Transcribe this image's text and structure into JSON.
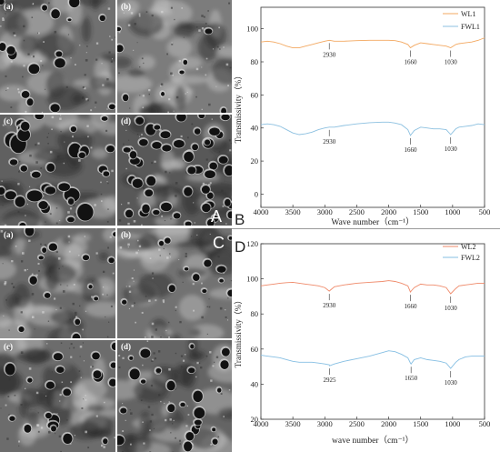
{
  "figure": {
    "sem_panels": [
      {
        "letter": "A",
        "tiles": [
          "(a)",
          "(b)",
          "(c)",
          "(d)"
        ]
      },
      {
        "letter": "C",
        "tiles": [
          "(a)",
          "(b)",
          "(c)",
          "(d)"
        ]
      }
    ]
  },
  "chart_data": [
    {
      "panel_label": "B",
      "type": "line",
      "title": "",
      "xlabel": "Wave number（cm⁻¹）",
      "ylabel": "Transmissivity（%）",
      "xlim": [
        4000,
        500
      ],
      "ylim": [
        -8,
        113
      ],
      "xticks": [
        4000,
        3500,
        3000,
        2500,
        2000,
        1500,
        1000,
        500
      ],
      "yticks": [
        0,
        20,
        40,
        60,
        80,
        100
      ],
      "grid": false,
      "legend_position": "top-right",
      "x": [
        4000,
        3900,
        3800,
        3700,
        3600,
        3500,
        3400,
        3300,
        3200,
        3100,
        3000,
        2930,
        2850,
        2700,
        2500,
        2300,
        2100,
        2000,
        1900,
        1800,
        1700,
        1660,
        1600,
        1500,
        1400,
        1300,
        1200,
        1100,
        1030,
        950,
        900,
        800,
        700,
        600,
        500
      ],
      "series": [
        {
          "name": "WL1",
          "color": "#f3a860",
          "values": [
            92,
            92.5,
            92,
            91,
            89.5,
            88.5,
            88.5,
            89.5,
            90.5,
            91.5,
            92.5,
            93,
            92.5,
            92.5,
            92.8,
            93,
            93,
            93,
            92.8,
            92,
            90.5,
            88.5,
            90,
            91.5,
            91,
            90.5,
            90,
            89.5,
            88.5,
            90.5,
            91,
            91.5,
            92,
            93,
            94.5
          ]
        },
        {
          "name": "FWL1",
          "color": "#8cc0e0",
          "values": [
            42,
            42.5,
            42,
            41,
            39,
            37,
            36,
            36.5,
            37.5,
            39,
            40,
            40.5,
            40.5,
            41.5,
            42.5,
            43.2,
            43.5,
            43.5,
            43,
            42,
            39,
            35.5,
            38.5,
            40.5,
            40,
            39.5,
            39.5,
            39,
            36,
            39.5,
            40.5,
            41,
            41.5,
            42.5,
            42
          ]
        }
      ],
      "annotations": [
        {
          "series": "WL1",
          "x": 2930,
          "text": "2930"
        },
        {
          "series": "WL1",
          "x": 1660,
          "text": "1660"
        },
        {
          "series": "WL1",
          "x": 1030,
          "text": "1030"
        },
        {
          "series": "FWL1",
          "x": 2930,
          "text": "2930"
        },
        {
          "series": "FWL1",
          "x": 1660,
          "text": "1660"
        },
        {
          "series": "FWL1",
          "x": 1030,
          "text": "1030"
        }
      ]
    },
    {
      "panel_label": "D",
      "type": "line",
      "title": "",
      "xlabel": "wave number（cm⁻¹）",
      "ylabel": "Transmissivity（%）",
      "xlim": [
        4000,
        500
      ],
      "ylim": [
        20,
        120
      ],
      "xticks": [
        4000,
        3500,
        3000,
        2500,
        2000,
        1500,
        1000,
        500
      ],
      "yticks": [
        20,
        40,
        60,
        80,
        100,
        120
      ],
      "grid": false,
      "legend_position": "top-right",
      "x": [
        4000,
        3900,
        3800,
        3700,
        3600,
        3500,
        3400,
        3300,
        3200,
        3100,
        3000,
        2930,
        2925,
        2850,
        2700,
        2500,
        2300,
        2100,
        2000,
        1900,
        1800,
        1700,
        1660,
        1650,
        1600,
        1500,
        1400,
        1300,
        1200,
        1100,
        1030,
        950,
        900,
        800,
        700,
        600,
        500
      ],
      "series": [
        {
          "name": "WL2",
          "color": "#ef8a6a",
          "values": [
            96,
            96.5,
            97,
            97.5,
            97.8,
            98,
            97.5,
            97,
            96.5,
            96,
            95,
            93,
            93.2,
            95.5,
            96.5,
            97.5,
            98,
            98.5,
            99,
            98.5,
            97.5,
            96,
            92.5,
            93,
            95,
            97,
            96.5,
            96.5,
            96,
            95,
            91.5,
            94.5,
            96,
            96.5,
            97,
            97.5,
            97.5
          ]
        },
        {
          "name": "FWL2",
          "color": "#86bfe3",
          "values": [
            56.5,
            56,
            55.5,
            55,
            54,
            53,
            52.5,
            52.5,
            52.5,
            52,
            51.5,
            51,
            50.5,
            51.5,
            53,
            54.5,
            56,
            58,
            59,
            58.5,
            57,
            55,
            52,
            51.5,
            54,
            55,
            54,
            53.5,
            53,
            52,
            49,
            52.5,
            54,
            55.5,
            56,
            56,
            56
          ]
        }
      ],
      "annotations": [
        {
          "series": "WL2",
          "x": 2930,
          "text": "2930"
        },
        {
          "series": "WL2",
          "x": 1660,
          "text": "1660"
        },
        {
          "series": "WL2",
          "x": 1030,
          "text": "1030"
        },
        {
          "series": "FWL2",
          "x": 2925,
          "text": "2925"
        },
        {
          "series": "FWL2",
          "x": 1650,
          "text": "1650"
        },
        {
          "series": "FWL2",
          "x": 1030,
          "text": "1030"
        }
      ]
    }
  ]
}
